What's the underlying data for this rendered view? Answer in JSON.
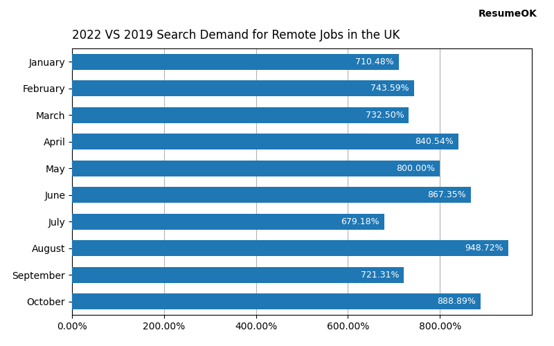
{
  "chart_data": {
    "type": "bar",
    "orientation": "horizontal",
    "title": "2022 VS 2019 Search Demand for Remote Jobs in the UK",
    "categories": [
      "January",
      "February",
      "March",
      "April",
      "May",
      "June",
      "July",
      "August",
      "September",
      "October"
    ],
    "values": [
      710.48,
      743.59,
      732.5,
      840.54,
      800.0,
      867.35,
      679.18,
      948.72,
      721.31,
      888.89
    ],
    "value_labels": [
      "710.48%",
      "743.59%",
      "732.50%",
      "840.54%",
      "800.00%",
      "867.35%",
      "679.18%",
      "948.72%",
      "721.31%",
      "888.89%"
    ],
    "data_labels": true,
    "xlim": [
      0,
      1000
    ],
    "xticks": [
      {
        "value": 0,
        "label": "0.00%"
      },
      {
        "value": 200,
        "label": "200.00%"
      },
      {
        "value": 400,
        "label": "400.00%"
      },
      {
        "value": 600,
        "label": "600.00%"
      },
      {
        "value": 800,
        "label": "800.00%"
      }
    ],
    "grid": "x",
    "annotations": [
      "ResumeOK"
    ]
  }
}
